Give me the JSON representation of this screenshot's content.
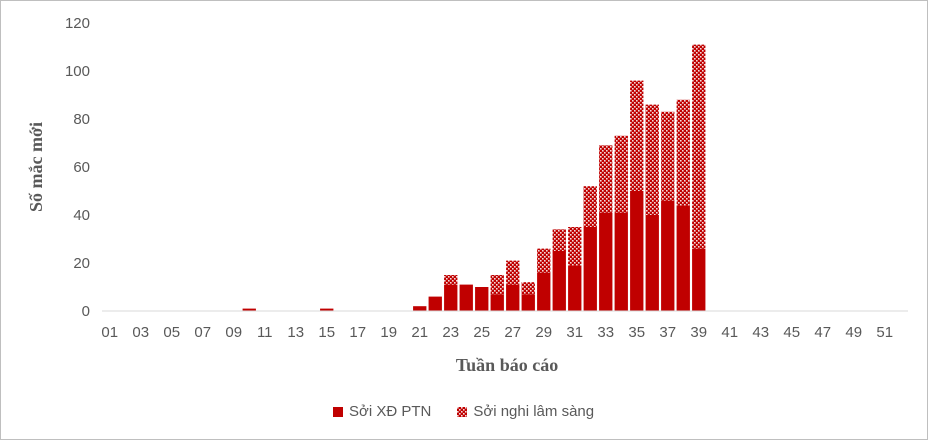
{
  "chart_data": {
    "type": "bar",
    "stacked": true,
    "xlabel": "Tuần báo cáo",
    "ylabel": "Số mắc mới",
    "ylim": [
      0,
      120
    ],
    "yticks": [
      0,
      20,
      40,
      60,
      80,
      100,
      120
    ],
    "xtick_labels": [
      "01",
      "03",
      "05",
      "07",
      "09",
      "11",
      "13",
      "15",
      "17",
      "19",
      "21",
      "23",
      "25",
      "27",
      "29",
      "31",
      "33",
      "35",
      "37",
      "39",
      "41",
      "43",
      "45",
      "47",
      "49",
      "51"
    ],
    "weeks": [
      1,
      2,
      3,
      4,
      5,
      6,
      7,
      8,
      9,
      10,
      11,
      12,
      13,
      14,
      15,
      16,
      17,
      18,
      19,
      20,
      21,
      22,
      23,
      24,
      25,
      26,
      27,
      28,
      29,
      30,
      31,
      32,
      33,
      34,
      35,
      36,
      37,
      38,
      39,
      40,
      41,
      42,
      43,
      44,
      45,
      46,
      47,
      48,
      49,
      50,
      51,
      52
    ],
    "legend_position": "bottom",
    "grid": false,
    "series": [
      {
        "name": "Sởi XĐ PTN",
        "color": "#c00000",
        "pattern": "solid",
        "values": [
          0,
          0,
          0,
          0,
          0,
          0,
          0,
          0,
          0,
          1,
          0,
          0,
          0,
          0,
          1,
          0,
          0,
          0,
          0,
          0,
          2,
          6,
          11,
          11,
          10,
          7,
          11,
          7,
          16,
          25,
          19,
          35,
          41,
          41,
          50,
          40,
          46,
          44,
          26,
          0,
          0,
          0,
          0,
          0,
          0,
          0,
          0,
          0,
          0,
          0,
          0,
          0
        ]
      },
      {
        "name": "Sởi nghi lâm sàng",
        "color": "#c00000",
        "pattern": "dotted",
        "values": [
          0,
          0,
          0,
          0,
          0,
          0,
          0,
          0,
          0,
          0,
          0,
          0,
          0,
          0,
          0,
          0,
          0,
          0,
          0,
          0,
          0,
          0,
          4,
          0,
          0,
          8,
          10,
          5,
          10,
          9,
          16,
          17,
          28,
          32,
          46,
          46,
          37,
          44,
          85,
          0,
          0,
          0,
          0,
          0,
          0,
          0,
          0,
          0,
          0,
          0,
          0,
          0
        ]
      }
    ]
  }
}
